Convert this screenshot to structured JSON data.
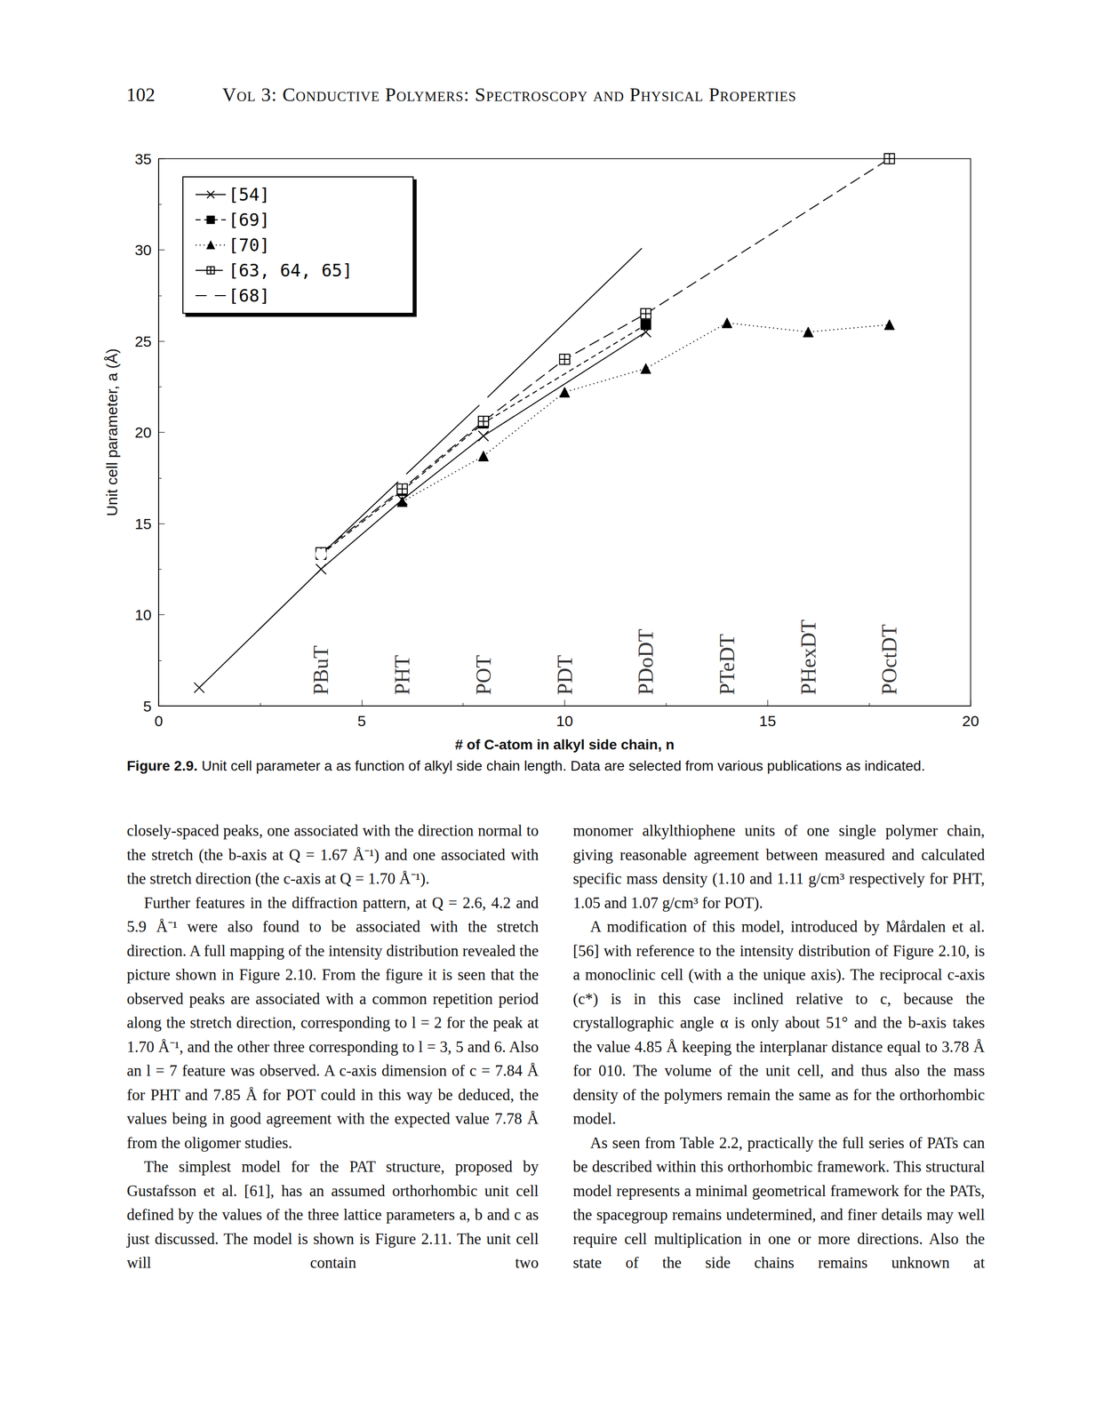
{
  "header": {
    "page_number": "102",
    "title": "Vol 3: Conductive Polymers: Spectroscopy and Physical Properties"
  },
  "chart_data": {
    "type": "line",
    "x_label": "# of C-atom in alkyl side chain, n",
    "y_label": "Unit cell parameter, a (Å)",
    "xlim": [
      0,
      20
    ],
    "xticks": [
      0,
      5,
      10,
      15,
      20
    ],
    "ylim": [
      5,
      35
    ],
    "yticks": [
      5,
      10,
      15,
      20,
      25,
      30,
      35
    ],
    "grid": false,
    "legend": "upper left",
    "series": [
      {
        "name": "[54]",
        "color": "#000000",
        "marker": "x",
        "line_style": "solid",
        "x": [
          1,
          4,
          6,
          8,
          12
        ],
        "values": [
          6.0,
          12.5,
          16.3,
          19.8,
          25.5
        ]
      },
      {
        "name": "[69]",
        "color": "#000000",
        "marker": "square",
        "line_style": "dashed",
        "x": [
          4,
          6,
          8,
          12
        ],
        "values": [
          13.3,
          16.8,
          20.5,
          25.9
        ]
      },
      {
        "name": "[70]",
        "color": "#000000",
        "marker": "triangle",
        "line_style": "dotted",
        "x": [
          6,
          8,
          10,
          12,
          14,
          16,
          18
        ],
        "values": [
          16.2,
          18.7,
          22.2,
          23.5,
          26.0,
          25.5,
          25.9
        ]
      },
      {
        "name": "[63, 64, 65]",
        "color": "#000000",
        "marker": "boxplus",
        "line_style": "longdash",
        "x": [
          4,
          6,
          8,
          10,
          12,
          18
        ],
        "values": [
          13.4,
          16.9,
          20.6,
          24.0,
          26.5,
          35.0
        ]
      },
      {
        "name": "[68]",
        "color": "#000000",
        "marker": "open_circle",
        "line_style": "solid",
        "x": [
          4,
          6,
          8,
          12
        ],
        "values": [
          13.3,
          17.5,
          21.7,
          30.3
        ]
      }
    ],
    "annotations": [
      {
        "text": "PBuT",
        "x": 4,
        "y": 5.6
      },
      {
        "text": "PHT",
        "x": 6,
        "y": 5.6
      },
      {
        "text": "POT",
        "x": 8,
        "y": 5.6
      },
      {
        "text": "PDT",
        "x": 10,
        "y": 5.6
      },
      {
        "text": "PDoDT",
        "x": 12,
        "y": 5.6
      },
      {
        "text": "PTeDT",
        "x": 14,
        "y": 5.6
      },
      {
        "text": "PHexDT",
        "x": 16,
        "y": 5.6
      },
      {
        "text": "POctDT",
        "x": 18,
        "y": 5.6
      }
    ]
  },
  "caption": {
    "label": "Figure 2.9.",
    "text": "Unit cell parameter a as function of alkyl side chain length. Data are selected from various publications as indicated."
  },
  "columns": [
    [
      "closely-spaced peaks, one associated with the direction normal to the stretch (the b-axis at Q = 1.67 Å⁻¹) and one associated with the stretch direction (the c-axis at Q = 1.70 Å⁻¹).",
      "Further features in the diffraction pattern, at Q = 2.6, 4.2 and 5.9 Å⁻¹ were also found to be associated with the stretch direction. A full mapping of the intensity distribution revealed the picture shown in Figure 2.10. From the figure it is seen that the observed peaks are associated with a common repetition period along the stretch direction, corresponding to l = 2 for the peak at 1.70 Å⁻¹, and the other three corresponding to l = 3, 5 and 6. Also an l = 7 feature was observed. A c-axis dimension of c = 7.84 Å for PHT and 7.85 Å for POT could in this way be deduced, the values being in good agreement with the expected value 7.78 Å from the oligomer studies.",
      "The simplest model for the PAT structure, proposed by Gustafsson et al. [61], has an assumed orthorhombic unit cell defined by the values of the three lattice parameters a, b and c as just discussed. The model is shown is Figure 2.11. The unit cell will contain two"
    ],
    [
      "monomer alkylthiophene units of one single polymer chain, giving reasonable agreement between measured and calculated specific mass density (1.10 and 1.11 g/cm³ respectively for PHT, 1.05 and 1.07 g/cm³ for POT).",
      "A modification of this model, introduced by Mårdalen et al. [56] with reference to the intensity distribution of Figure 2.10, is a monoclinic cell (with a the unique axis). The reciprocal c-axis (c*) is in this case inclined relative to c, because the crystallographic angle α is only about 51° and the b-axis takes the value 4.85 Å keeping the interplanar distance equal to 3.78 Å for 010. The volume of the unit cell, and thus also the mass density of the polymers remain the same as for the orthorhombic model.",
      "As seen from Table 2.2, practically the full series of PATs can be described within this orthorhombic framework. This structural model represents a minimal geometrical framework for the PATs, the spacegroup remains undetermined, and finer details may well require cell multiplication in one or more directions. Also the state of the side chains remains unknown at"
    ]
  ]
}
